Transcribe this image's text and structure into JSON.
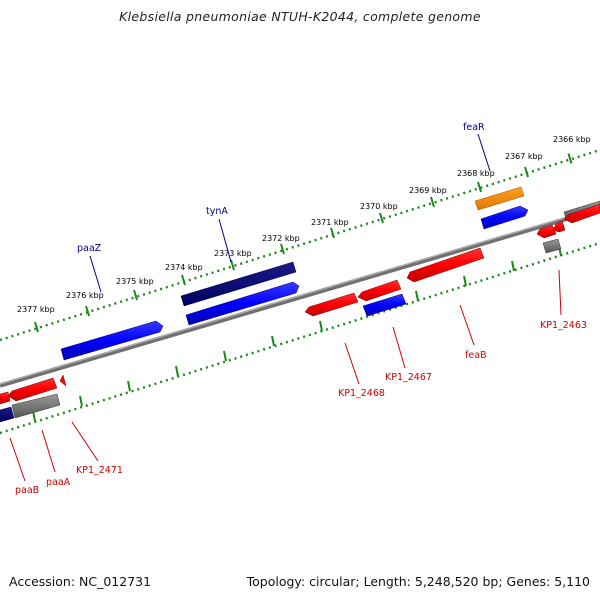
{
  "title": "Klebsiella pneumoniae NTUH-K2044, complete genome",
  "footer": {
    "accession": "Accession: NC_012731",
    "summary": "Topology: circular; Length: 5,248,520 bp; Genes: 5,110"
  },
  "ticks": [
    "2366 kbp",
    "2367 kbp",
    "2368 kbp",
    "2369 kbp",
    "2370 kbp",
    "2371 kbp",
    "2372 kbp",
    "2373 kbp",
    "2374 kbp",
    "2375 kbp",
    "2376 kbp",
    "2377 kbp"
  ],
  "gene_labels": {
    "feaR": "feaR",
    "tynA": "tynA",
    "paaZ": "paaZ",
    "KP1_2463": "KP1_2463",
    "feaB": "feaB",
    "KP1_2467": "KP1_2467",
    "KP1_2468": "KP1_2468",
    "KP1_2471": "KP1_2471",
    "paaA": "paaA",
    "paaB": "paaB"
  },
  "colors": {
    "forward_gene": "#0000ff",
    "forward_dark": "#000080",
    "reverse_gene": "#ff0000",
    "regulator": "#ff8c00",
    "pseudo": "#777777",
    "ruler_dots": "#1a8a1a",
    "backbone": "#808080"
  }
}
